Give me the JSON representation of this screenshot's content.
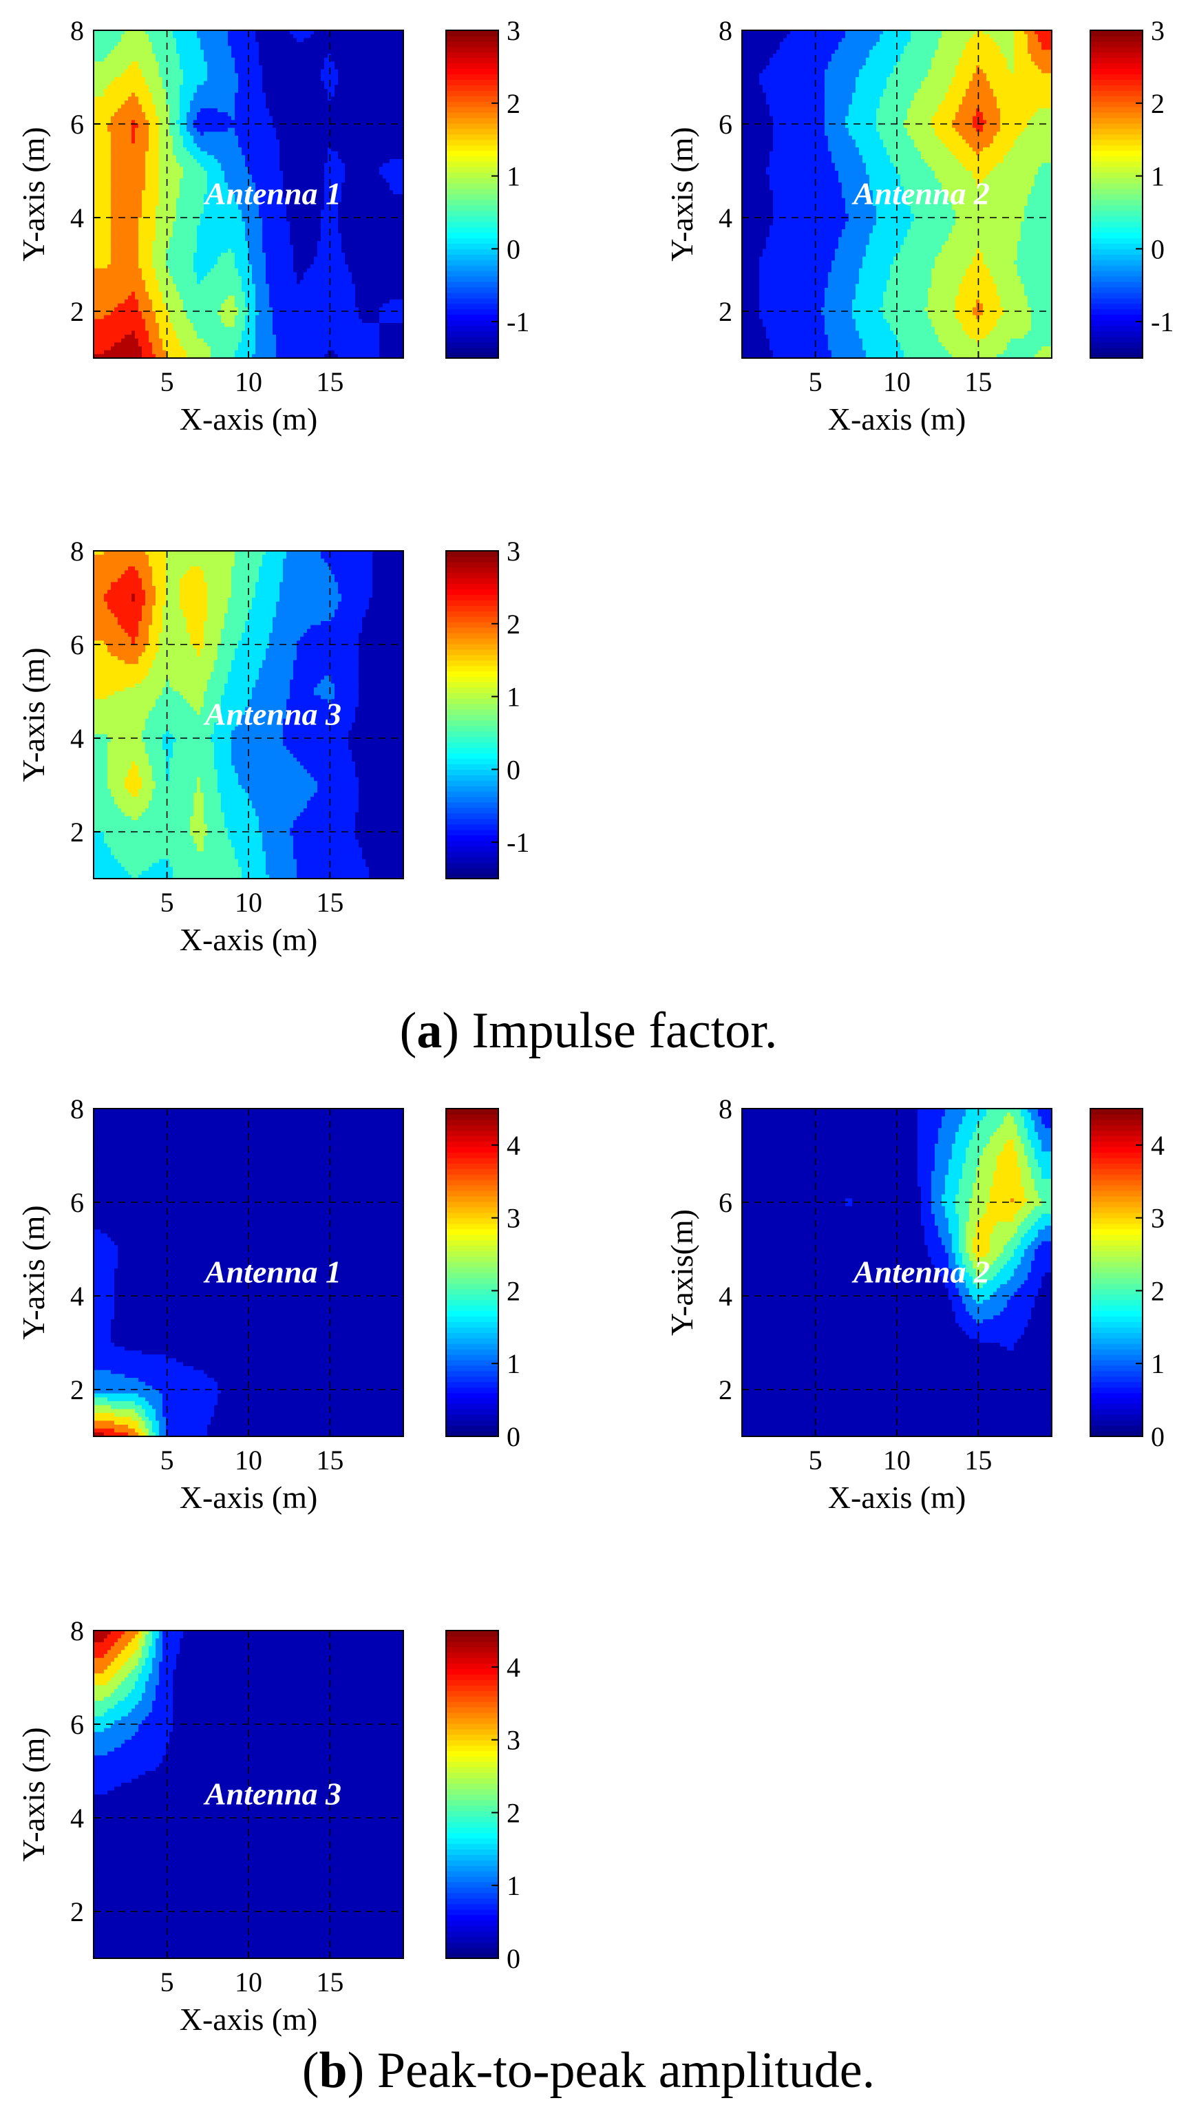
{
  "figure": {
    "caption_a_label": "a",
    "caption_a_text": "Impulse factor.",
    "caption_b_label": "b",
    "caption_b_text": "Peak-to-peak amplitude."
  },
  "chart_data": [
    {
      "type": "heatmap",
      "title": "Antenna 1",
      "xlabel": "X-axis (m)",
      "ylabel": "Y-axis (m)",
      "x": [
        1,
        3,
        5,
        7,
        9,
        11,
        13,
        15,
        17,
        19
      ],
      "y": [
        1,
        2,
        3,
        4,
        5,
        6,
        7,
        8
      ],
      "values": [
        [
          2.6,
          2.9,
          1.6,
          1.0,
          0.3,
          -0.4,
          -0.9,
          -1.1,
          -0.9,
          -1.2
        ],
        [
          2.0,
          2.3,
          1.2,
          0.4,
          1.0,
          -0.5,
          -1.0,
          -0.8,
          -1.1,
          -1.0
        ],
        [
          1.6,
          1.8,
          0.7,
          0.2,
          0.4,
          -0.6,
          -1.1,
          -1.0,
          -1.1,
          -1.2
        ],
        [
          1.6,
          1.8,
          0.9,
          0.3,
          0.1,
          -0.7,
          -1.2,
          -1.0,
          -1.2,
          -1.1
        ],
        [
          1.5,
          2.0,
          1.0,
          0.5,
          -0.4,
          -0.8,
          -1.3,
          -1.0,
          -1.1,
          -1.0
        ],
        [
          1.5,
          2.2,
          0.9,
          -0.9,
          -0.6,
          -1.0,
          -1.2,
          -1.1,
          -1.1,
          -1.2
        ],
        [
          1.0,
          1.4,
          0.6,
          0.0,
          -0.5,
          -1.1,
          -1.2,
          -1.0,
          -1.2,
          -1.1
        ],
        [
          0.3,
          0.9,
          0.4,
          -0.2,
          -0.7,
          -1.2,
          -1.0,
          -1.1,
          -1.2,
          -1.1
        ]
      ],
      "xlim": [
        0.5,
        19.5
      ],
      "ylim": [
        1,
        8
      ],
      "xticks": [
        5,
        10,
        15
      ],
      "yticks": [
        2,
        4,
        6,
        8
      ],
      "colorbar": {
        "min": -1.5,
        "max": 3,
        "ticks": [
          -1,
          0,
          1,
          2,
          3
        ]
      }
    },
    {
      "type": "heatmap",
      "title": "Antenna 2",
      "xlabel": "X-axis (m)",
      "ylabel": "Y-axis (m)",
      "x": [
        1,
        3,
        5,
        7,
        9,
        11,
        13,
        15,
        17,
        19
      ],
      "y": [
        1,
        2,
        3,
        4,
        5,
        6,
        7,
        8
      ],
      "values": [
        [
          -1.2,
          -1.0,
          -0.8,
          -0.4,
          0.0,
          0.4,
          0.7,
          0.9,
          0.6,
          0.8
        ],
        [
          -1.1,
          -0.9,
          -0.7,
          -0.2,
          0.3,
          0.6,
          1.0,
          1.8,
          1.0,
          0.6
        ],
        [
          -1.1,
          -0.9,
          -0.8,
          -0.4,
          0.2,
          0.5,
          0.9,
          1.3,
          0.8,
          0.4
        ],
        [
          -1.2,
          -1.0,
          -0.9,
          -0.6,
          -0.1,
          0.3,
          0.6,
          1.0,
          0.9,
          0.5
        ],
        [
          -1.1,
          -1.0,
          -0.8,
          -0.5,
          0.1,
          0.5,
          0.9,
          1.3,
          1.0,
          0.7
        ],
        [
          -1.2,
          -1.0,
          -0.8,
          -0.1,
          0.4,
          0.9,
          1.5,
          2.3,
          1.4,
          1.0
        ],
        [
          -1.1,
          -0.9,
          -0.7,
          -0.3,
          0.2,
          0.6,
          1.0,
          1.8,
          1.2,
          1.6
        ],
        [
          -1.3,
          -1.1,
          -0.9,
          -0.6,
          -0.2,
          0.3,
          0.8,
          1.2,
          1.0,
          2.5
        ]
      ],
      "xlim": [
        0.5,
        19.5
      ],
      "ylim": [
        1,
        8
      ],
      "xticks": [
        5,
        10,
        15
      ],
      "yticks": [
        2,
        4,
        6,
        8
      ],
      "colorbar": {
        "min": -1.5,
        "max": 3,
        "ticks": [
          -1,
          0,
          1,
          2,
          3
        ]
      }
    },
    {
      "type": "heatmap",
      "title": "Antenna 3",
      "xlabel": "X-axis (m)",
      "ylabel": "Y-axis (m)",
      "x": [
        1,
        3,
        5,
        7,
        9,
        11,
        13,
        15,
        17,
        19
      ],
      "y": [
        1,
        2,
        3,
        4,
        5,
        6,
        7,
        8
      ],
      "values": [
        [
          0.2,
          0.3,
          0.2,
          0.6,
          0.5,
          -0.1,
          -0.6,
          -0.8,
          -1.0,
          -1.2
        ],
        [
          0.3,
          0.5,
          0.4,
          0.9,
          0.2,
          -0.2,
          -0.7,
          -0.9,
          -1.1,
          -1.2
        ],
        [
          0.6,
          1.5,
          0.3,
          0.8,
          -0.1,
          -0.3,
          -0.4,
          -0.7,
          -1.1,
          -1.2
        ],
        [
          0.7,
          0.9,
          0.2,
          0.6,
          -0.2,
          -0.4,
          -0.8,
          -0.9,
          -1.2,
          -1.1
        ],
        [
          1.3,
          1.1,
          0.7,
          0.9,
          0.1,
          -0.3,
          -0.7,
          -0.5,
          -1.1,
          -1.2
        ],
        [
          1.6,
          2.1,
          0.9,
          1.3,
          0.4,
          -0.1,
          -0.6,
          -0.8,
          -1.1,
          -1.2
        ],
        [
          2.1,
          2.6,
          1.1,
          1.4,
          0.7,
          0.1,
          -0.5,
          -0.4,
          -1.0,
          -1.2
        ],
        [
          1.6,
          1.9,
          1.2,
          1.1,
          0.8,
          0.3,
          -0.4,
          -0.7,
          -1.0,
          -1.2
        ]
      ],
      "xlim": [
        0.5,
        19.5
      ],
      "ylim": [
        1,
        8
      ],
      "xticks": [
        5,
        10,
        15
      ],
      "yticks": [
        2,
        4,
        6,
        8
      ],
      "colorbar": {
        "min": -1.5,
        "max": 3,
        "ticks": [
          -1,
          0,
          1,
          2,
          3
        ]
      }
    },
    {
      "type": "heatmap",
      "title": "Antenna 1",
      "xlabel": "X-axis (m)",
      "ylabel": "Y-axis (m)",
      "x": [
        1,
        3,
        5,
        7,
        9,
        11,
        13,
        15,
        17,
        19
      ],
      "y": [
        1,
        2,
        3,
        4,
        5,
        6,
        7,
        8
      ],
      "values": [
        [
          4.2,
          3.6,
          0.7,
          0.5,
          0.2,
          0.1,
          0.1,
          0.1,
          0.1,
          0.1
        ],
        [
          1.2,
          1.1,
          0.8,
          0.7,
          0.3,
          0.1,
          0.1,
          0.1,
          0.1,
          0.1
        ],
        [
          0.5,
          0.3,
          0.3,
          0.1,
          0.1,
          0.1,
          0.1,
          0.1,
          0.1,
          0.1
        ],
        [
          0.6,
          0.2,
          0.1,
          0.1,
          0.1,
          0.1,
          0.1,
          0.1,
          0.1,
          0.1
        ],
        [
          0.6,
          0.3,
          0.1,
          0.1,
          0.1,
          0.1,
          0.1,
          0.1,
          0.1,
          0.1
        ],
        [
          0.2,
          0.1,
          0.1,
          0.1,
          0.1,
          0.1,
          0.1,
          0.1,
          0.1,
          0.1
        ],
        [
          0.1,
          0.1,
          0.1,
          0.1,
          0.1,
          0.1,
          0.1,
          0.1,
          0.1,
          0.1
        ],
        [
          0.1,
          0.1,
          0.1,
          0.1,
          0.1,
          0.1,
          0.1,
          0.1,
          0.1,
          0.1
        ]
      ],
      "xlim": [
        0.5,
        19.5
      ],
      "ylim": [
        1,
        8
      ],
      "xticks": [
        5,
        10,
        15
      ],
      "yticks": [
        2,
        4,
        6,
        8
      ],
      "colorbar": {
        "min": 0,
        "max": 4.5,
        "ticks": [
          0,
          1,
          2,
          3,
          4
        ]
      }
    },
    {
      "type": "heatmap",
      "title": "Antenna 2",
      "xlabel": "X-axis (m)",
      "ylabel": "Y-axis(m)",
      "x": [
        1,
        3,
        5,
        7,
        9,
        11,
        13,
        15,
        17,
        19
      ],
      "y": [
        1,
        2,
        3,
        4,
        5,
        6,
        7,
        8
      ],
      "values": [
        [
          0.1,
          0.1,
          0.1,
          0.1,
          0.1,
          0.1,
          0.1,
          0.1,
          0.1,
          0.1
        ],
        [
          0.1,
          0.1,
          0.1,
          0.1,
          0.1,
          0.1,
          0.1,
          0.1,
          0.2,
          0.1
        ],
        [
          0.1,
          0.1,
          0.1,
          0.1,
          0.1,
          0.1,
          0.1,
          0.4,
          0.5,
          0.2
        ],
        [
          0.1,
          0.1,
          0.1,
          0.1,
          0.1,
          0.1,
          0.3,
          1.6,
          0.9,
          0.3
        ],
        [
          0.1,
          0.1,
          0.1,
          0.1,
          0.1,
          0.1,
          0.9,
          3.1,
          2.0,
          0.6
        ],
        [
          0.1,
          0.1,
          0.1,
          0.5,
          0.1,
          0.2,
          1.5,
          2.5,
          3.2,
          2.2
        ],
        [
          0.1,
          0.1,
          0.1,
          0.1,
          0.1,
          0.3,
          1.2,
          2.2,
          3.0,
          1.4
        ],
        [
          0.1,
          0.1,
          0.1,
          0.1,
          0.2,
          0.4,
          0.9,
          1.6,
          2.2,
          0.6
        ]
      ],
      "xlim": [
        0.5,
        19.5
      ],
      "ylim": [
        1,
        8
      ],
      "xticks": [
        5,
        10,
        15
      ],
      "yticks": [
        2,
        4,
        6,
        8
      ],
      "colorbar": {
        "min": 0,
        "max": 4.5,
        "ticks": [
          0,
          1,
          2,
          3,
          4
        ]
      }
    },
    {
      "type": "heatmap",
      "title": "Antenna 3",
      "xlabel": "X-axis (m)",
      "ylabel": "Y-axis (m)",
      "x": [
        1,
        3,
        5,
        7,
        9,
        11,
        13,
        15,
        17,
        19
      ],
      "y": [
        1,
        2,
        3,
        4,
        5,
        6,
        7,
        8
      ],
      "values": [
        [
          0.1,
          0.1,
          0.1,
          0.1,
          0.1,
          0.1,
          0.1,
          0.1,
          0.1,
          0.1
        ],
        [
          0.1,
          0.1,
          0.1,
          0.1,
          0.1,
          0.1,
          0.1,
          0.1,
          0.1,
          0.1
        ],
        [
          0.1,
          0.1,
          0.1,
          0.1,
          0.1,
          0.1,
          0.1,
          0.1,
          0.1,
          0.1
        ],
        [
          0.3,
          0.2,
          0.1,
          0.1,
          0.1,
          0.1,
          0.1,
          0.1,
          0.1,
          0.1
        ],
        [
          0.6,
          0.5,
          0.4,
          0.1,
          0.1,
          0.1,
          0.1,
          0.1,
          0.1,
          0.1
        ],
        [
          1.5,
          1.0,
          0.5,
          0.2,
          0.1,
          0.1,
          0.1,
          0.1,
          0.1,
          0.1
        ],
        [
          3.0,
          2.0,
          0.5,
          0.2,
          0.1,
          0.1,
          0.1,
          0.1,
          0.1,
          0.1
        ],
        [
          4.4,
          3.4,
          0.6,
          0.3,
          0.1,
          0.1,
          0.1,
          0.1,
          0.1,
          0.1
        ]
      ],
      "xlim": [
        0.5,
        19.5
      ],
      "ylim": [
        1,
        8
      ],
      "xticks": [
        5,
        10,
        15
      ],
      "yticks": [
        2,
        4,
        6,
        8
      ],
      "colorbar": {
        "min": 0,
        "max": 4.5,
        "ticks": [
          0,
          1,
          2,
          3,
          4
        ]
      }
    }
  ]
}
